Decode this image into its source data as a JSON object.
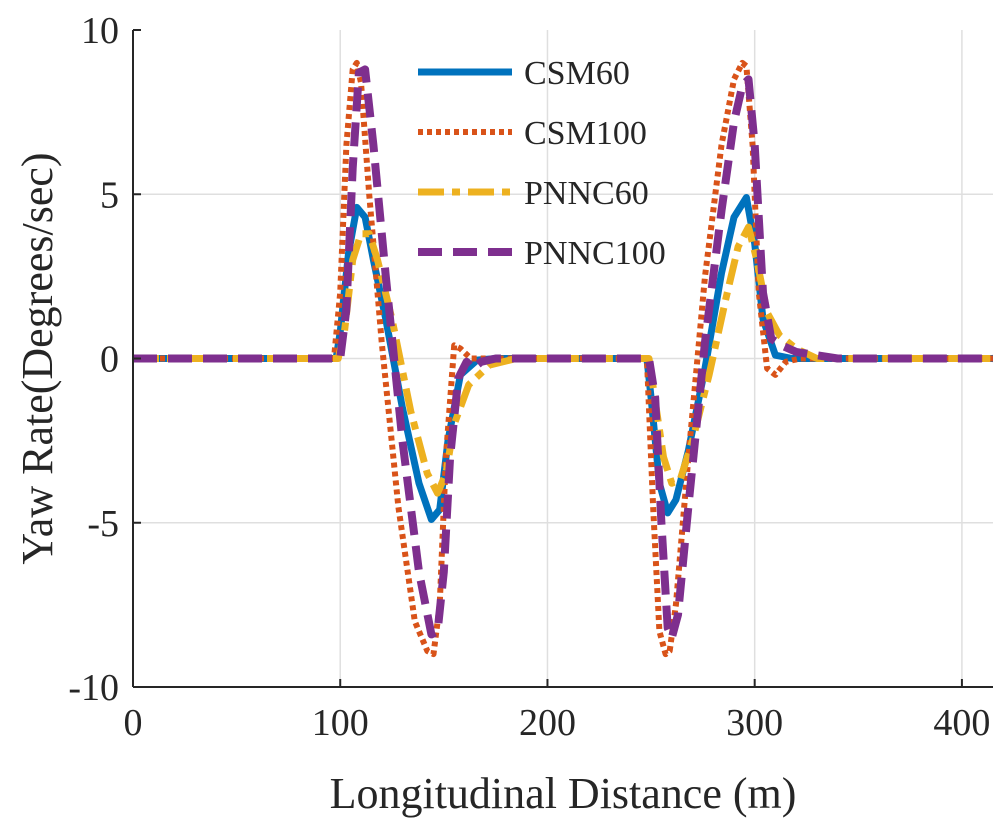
{
  "chart_data": {
    "type": "line",
    "title": "",
    "xlabel": "Longitudinal Distance (m)",
    "ylabel": "Yaw Rate(Degrees/sec)",
    "xlim": [
      0,
      415
    ],
    "ylim": [
      -10,
      10
    ],
    "xticks": [
      0,
      100,
      200,
      300,
      400
    ],
    "xtick_labels": [
      "0",
      "100",
      "200",
      "300",
      "400"
    ],
    "yticks": [
      -10,
      -5,
      0,
      5,
      10
    ],
    "ytick_labels": [
      "-10",
      "-5",
      "0",
      "5",
      "10"
    ],
    "grid": true,
    "legend_position": "top-center",
    "series": [
      {
        "name": "CSM60",
        "color": "#0072bd",
        "style": "solid",
        "x": [
          0,
          98,
          100,
          104,
          108,
          112,
          116,
          122,
          130,
          138,
          144,
          148,
          152,
          158,
          166,
          175,
          200,
          248,
          250,
          254,
          258,
          262,
          268,
          276,
          284,
          290,
          296,
          300,
          304,
          310,
          318,
          330,
          415
        ],
        "y": [
          0,
          0,
          0.8,
          3.2,
          4.6,
          4.3,
          3.0,
          1.2,
          -1.5,
          -3.8,
          -4.9,
          -4.6,
          -2.5,
          -0.5,
          -0.05,
          0,
          0,
          0,
          -1.2,
          -3.8,
          -4.7,
          -4.3,
          -2.8,
          -0.3,
          2.6,
          4.3,
          4.9,
          3.5,
          1.2,
          0.1,
          0,
          0,
          0
        ]
      },
      {
        "name": "CSM100",
        "color": "#d95319",
        "style": "dotted",
        "x": [
          0,
          97,
          100,
          103,
          106,
          108,
          110,
          114,
          120,
          128,
          136,
          142,
          145,
          148,
          151,
          155,
          158,
          163,
          170,
          200,
          248,
          251,
          254,
          257,
          259,
          262,
          268,
          276,
          284,
          290,
          294,
          296,
          299,
          302,
          306,
          310,
          315,
          322,
          415
        ],
        "y": [
          0,
          0,
          2.0,
          6.5,
          8.8,
          9.0,
          8.4,
          5.0,
          0.5,
          -4.5,
          -8.0,
          -8.9,
          -9.0,
          -7.5,
          -3.0,
          0.4,
          0.3,
          0,
          0,
          0,
          0,
          -4.5,
          -8.3,
          -9.0,
          -8.9,
          -7.5,
          -3.0,
          2.5,
          6.5,
          8.5,
          9.0,
          8.9,
          6.5,
          2.0,
          -0.3,
          -0.5,
          -0.1,
          0,
          0
        ]
      },
      {
        "name": "PNNC60",
        "color": "#edb120",
        "style": "dashdot",
        "x": [
          0,
          99,
          102,
          106,
          110,
          114,
          118,
          125,
          134,
          142,
          147,
          151,
          155,
          162,
          172,
          185,
          200,
          249,
          252,
          256,
          260,
          264,
          270,
          278,
          286,
          292,
          297,
          301,
          306,
          312,
          320,
          330,
          415
        ],
        "y": [
          0,
          0,
          0.8,
          3.0,
          3.8,
          3.8,
          3.0,
          1.2,
          -1.6,
          -3.5,
          -4.1,
          -3.5,
          -2.0,
          -0.8,
          -0.2,
          0,
          0,
          0,
          -1.3,
          -3.0,
          -3.8,
          -3.7,
          -2.5,
          -0.5,
          1.8,
          3.4,
          4.0,
          3.0,
          1.4,
          0.7,
          0.3,
          0,
          0
        ]
      },
      {
        "name": "PNNC100",
        "color": "#7e2f8e",
        "style": "dashed",
        "x": [
          0,
          100,
          103,
          106,
          109,
          112,
          116,
          122,
          130,
          138,
          144,
          147,
          150,
          153,
          157,
          161,
          164,
          168,
          175,
          200,
          249,
          252,
          255,
          258,
          260,
          263,
          268,
          276,
          284,
          290,
          294,
          297,
          300,
          304,
          308,
          313,
          320,
          330,
          340,
          415
        ],
        "y": [
          0,
          0,
          1.5,
          5.8,
          8.7,
          8.8,
          6.5,
          2.5,
          -2.5,
          -6.5,
          -8.4,
          -8.3,
          -6.5,
          -3.0,
          -0.6,
          -0.1,
          -0.3,
          -0.1,
          0,
          0,
          0,
          -1.2,
          -5.0,
          -8.2,
          -8.5,
          -7.8,
          -4.5,
          0.5,
          4.5,
          7.2,
          8.3,
          8.5,
          6.5,
          2.0,
          0.6,
          0.4,
          0.2,
          0.1,
          0,
          0
        ]
      }
    ]
  }
}
